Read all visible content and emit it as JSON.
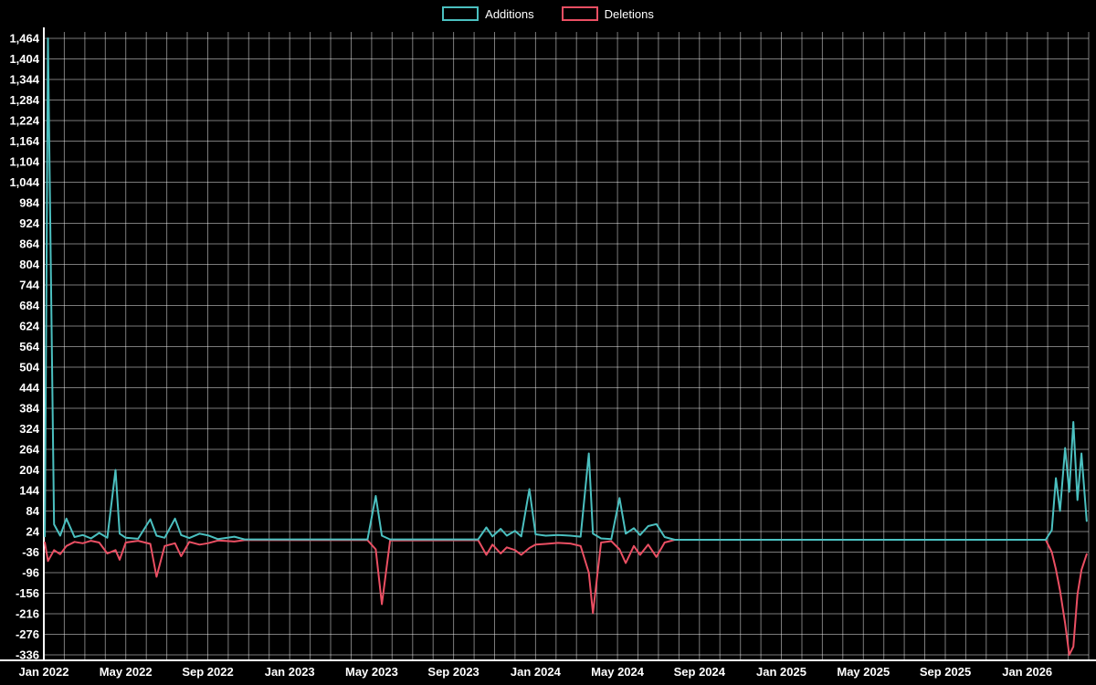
{
  "legend": {
    "items": [
      {
        "label": "Additions",
        "color": "#4bc0c0"
      },
      {
        "label": "Deletions",
        "color": "#ea4f63"
      }
    ]
  },
  "colors": {
    "background": "#000000",
    "grid": "rgba(255,255,255,0.48)",
    "axis": "#ffffff",
    "text": "#ffffff"
  },
  "chart_data": {
    "type": "line",
    "title": "",
    "xlabel": "",
    "ylabel": "",
    "legend_position": "top",
    "grid": true,
    "series": [
      {
        "name": "Additions",
        "color": "#4bc0c0"
      },
      {
        "name": "Deletions",
        "color": "#ea4f63"
      }
    ],
    "y_axis": {
      "min": -336,
      "max": 1464,
      "step": 60,
      "ticks": [
        1464,
        1404,
        1344,
        1284,
        1224,
        1164,
        1104,
        1044,
        984,
        924,
        864,
        804,
        744,
        684,
        624,
        564,
        504,
        444,
        384,
        324,
        264,
        204,
        144,
        84,
        24,
        -36,
        -96,
        -156,
        -216,
        -276,
        -336
      ]
    },
    "x_axis": {
      "months_span": 51,
      "labels": [
        {
          "m": 0,
          "label": "Jan 2022"
        },
        {
          "m": 4,
          "label": "May 2022"
        },
        {
          "m": 8,
          "label": "Sep 2022"
        },
        {
          "m": 12,
          "label": "Jan 2023"
        },
        {
          "m": 16,
          "label": "May 2023"
        },
        {
          "m": 20,
          "label": "Sep 2023"
        },
        {
          "m": 24,
          "label": "Jan 2024"
        },
        {
          "m": 28,
          "label": "May 2024"
        },
        {
          "m": 32,
          "label": "Sep 2024"
        },
        {
          "m": 36,
          "label": "Jan 2025"
        },
        {
          "m": 40,
          "label": "May 2025"
        },
        {
          "m": 44,
          "label": "Sep 2025"
        },
        {
          "m": 48,
          "label": "Jan 2026"
        }
      ]
    },
    "points_format": [
      "month_index",
      "additions",
      "deletions"
    ],
    "points": [
      [
        0.05,
        10,
        -8
      ],
      [
        0.2,
        1464,
        -62
      ],
      [
        0.5,
        45,
        -30
      ],
      [
        0.8,
        12,
        -42
      ],
      [
        1.1,
        62,
        -18
      ],
      [
        1.5,
        8,
        -6
      ],
      [
        1.9,
        14,
        -10
      ],
      [
        2.3,
        4,
        -3
      ],
      [
        2.7,
        20,
        -8
      ],
      [
        3.1,
        6,
        -40
      ],
      [
        3.5,
        204,
        -30
      ],
      [
        3.7,
        18,
        -58
      ],
      [
        4.0,
        6,
        -8
      ],
      [
        4.6,
        3,
        -3
      ],
      [
        5.2,
        60,
        -12
      ],
      [
        5.5,
        12,
        -108
      ],
      [
        5.9,
        6,
        -18
      ],
      [
        6.4,
        62,
        -10
      ],
      [
        6.7,
        14,
        -48
      ],
      [
        7.1,
        5,
        -6
      ],
      [
        7.6,
        18,
        -14
      ],
      [
        8.0,
        13,
        -10
      ],
      [
        8.5,
        2,
        -2
      ],
      [
        9.3,
        9,
        -5
      ],
      [
        9.8,
        1,
        -1
      ],
      [
        15.8,
        1,
        -1
      ],
      [
        16.2,
        128,
        -28
      ],
      [
        16.5,
        12,
        -188
      ],
      [
        16.9,
        1,
        -2
      ],
      [
        21.2,
        1,
        -1
      ],
      [
        21.6,
        36,
        -44
      ],
      [
        21.9,
        10,
        -14
      ],
      [
        22.3,
        32,
        -40
      ],
      [
        22.6,
        12,
        -22
      ],
      [
        23.0,
        26,
        -30
      ],
      [
        23.3,
        10,
        -44
      ],
      [
        23.7,
        148,
        -24
      ],
      [
        24.0,
        16,
        -14
      ],
      [
        24.5,
        12,
        -12
      ],
      [
        25.1,
        14,
        -9
      ],
      [
        25.7,
        12,
        -11
      ],
      [
        26.2,
        9,
        -18
      ],
      [
        26.6,
        252,
        -96
      ],
      [
        26.8,
        18,
        -214
      ],
      [
        27.2,
        4,
        -8
      ],
      [
        27.7,
        2,
        -4
      ],
      [
        28.1,
        122,
        -28
      ],
      [
        28.4,
        18,
        -68
      ],
      [
        28.8,
        34,
        -18
      ],
      [
        29.1,
        14,
        -44
      ],
      [
        29.5,
        40,
        -14
      ],
      [
        29.9,
        46,
        -50
      ],
      [
        30.3,
        8,
        -8
      ],
      [
        30.8,
        0,
        0
      ],
      [
        48.9,
        0,
        0
      ],
      [
        49.2,
        28,
        -36
      ],
      [
        49.4,
        180,
        -86
      ],
      [
        49.6,
        84,
        -148
      ],
      [
        49.85,
        268,
        -244
      ],
      [
        50.05,
        140,
        -336
      ],
      [
        50.25,
        344,
        -312
      ],
      [
        50.45,
        116,
        -160
      ],
      [
        50.65,
        252,
        -88
      ],
      [
        50.9,
        55,
        -42
      ]
    ]
  }
}
